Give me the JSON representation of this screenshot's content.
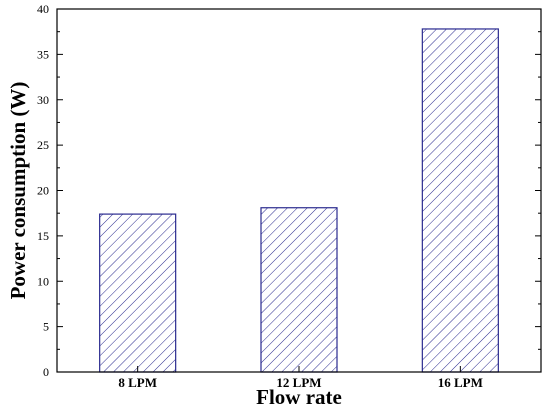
{
  "chart_data": {
    "type": "bar",
    "title": "",
    "xlabel": "Flow rate",
    "ylabel": "Power consumption (W)",
    "categories": [
      "8 LPM",
      "12 LPM",
      "16 LPM"
    ],
    "values": [
      17.4,
      18.1,
      37.8
    ],
    "ylim": [
      0,
      40
    ],
    "yticks": [
      "0",
      "5",
      "10",
      "15",
      "20",
      "25",
      "30",
      "35",
      "40"
    ],
    "grid": false,
    "legend": "none",
    "bar_fill": "hatched",
    "colors": {
      "bar_stroke": "#2a2a8f",
      "hatch": "#2a2a8f",
      "axis": "#000000",
      "background": "#ffffff"
    }
  }
}
